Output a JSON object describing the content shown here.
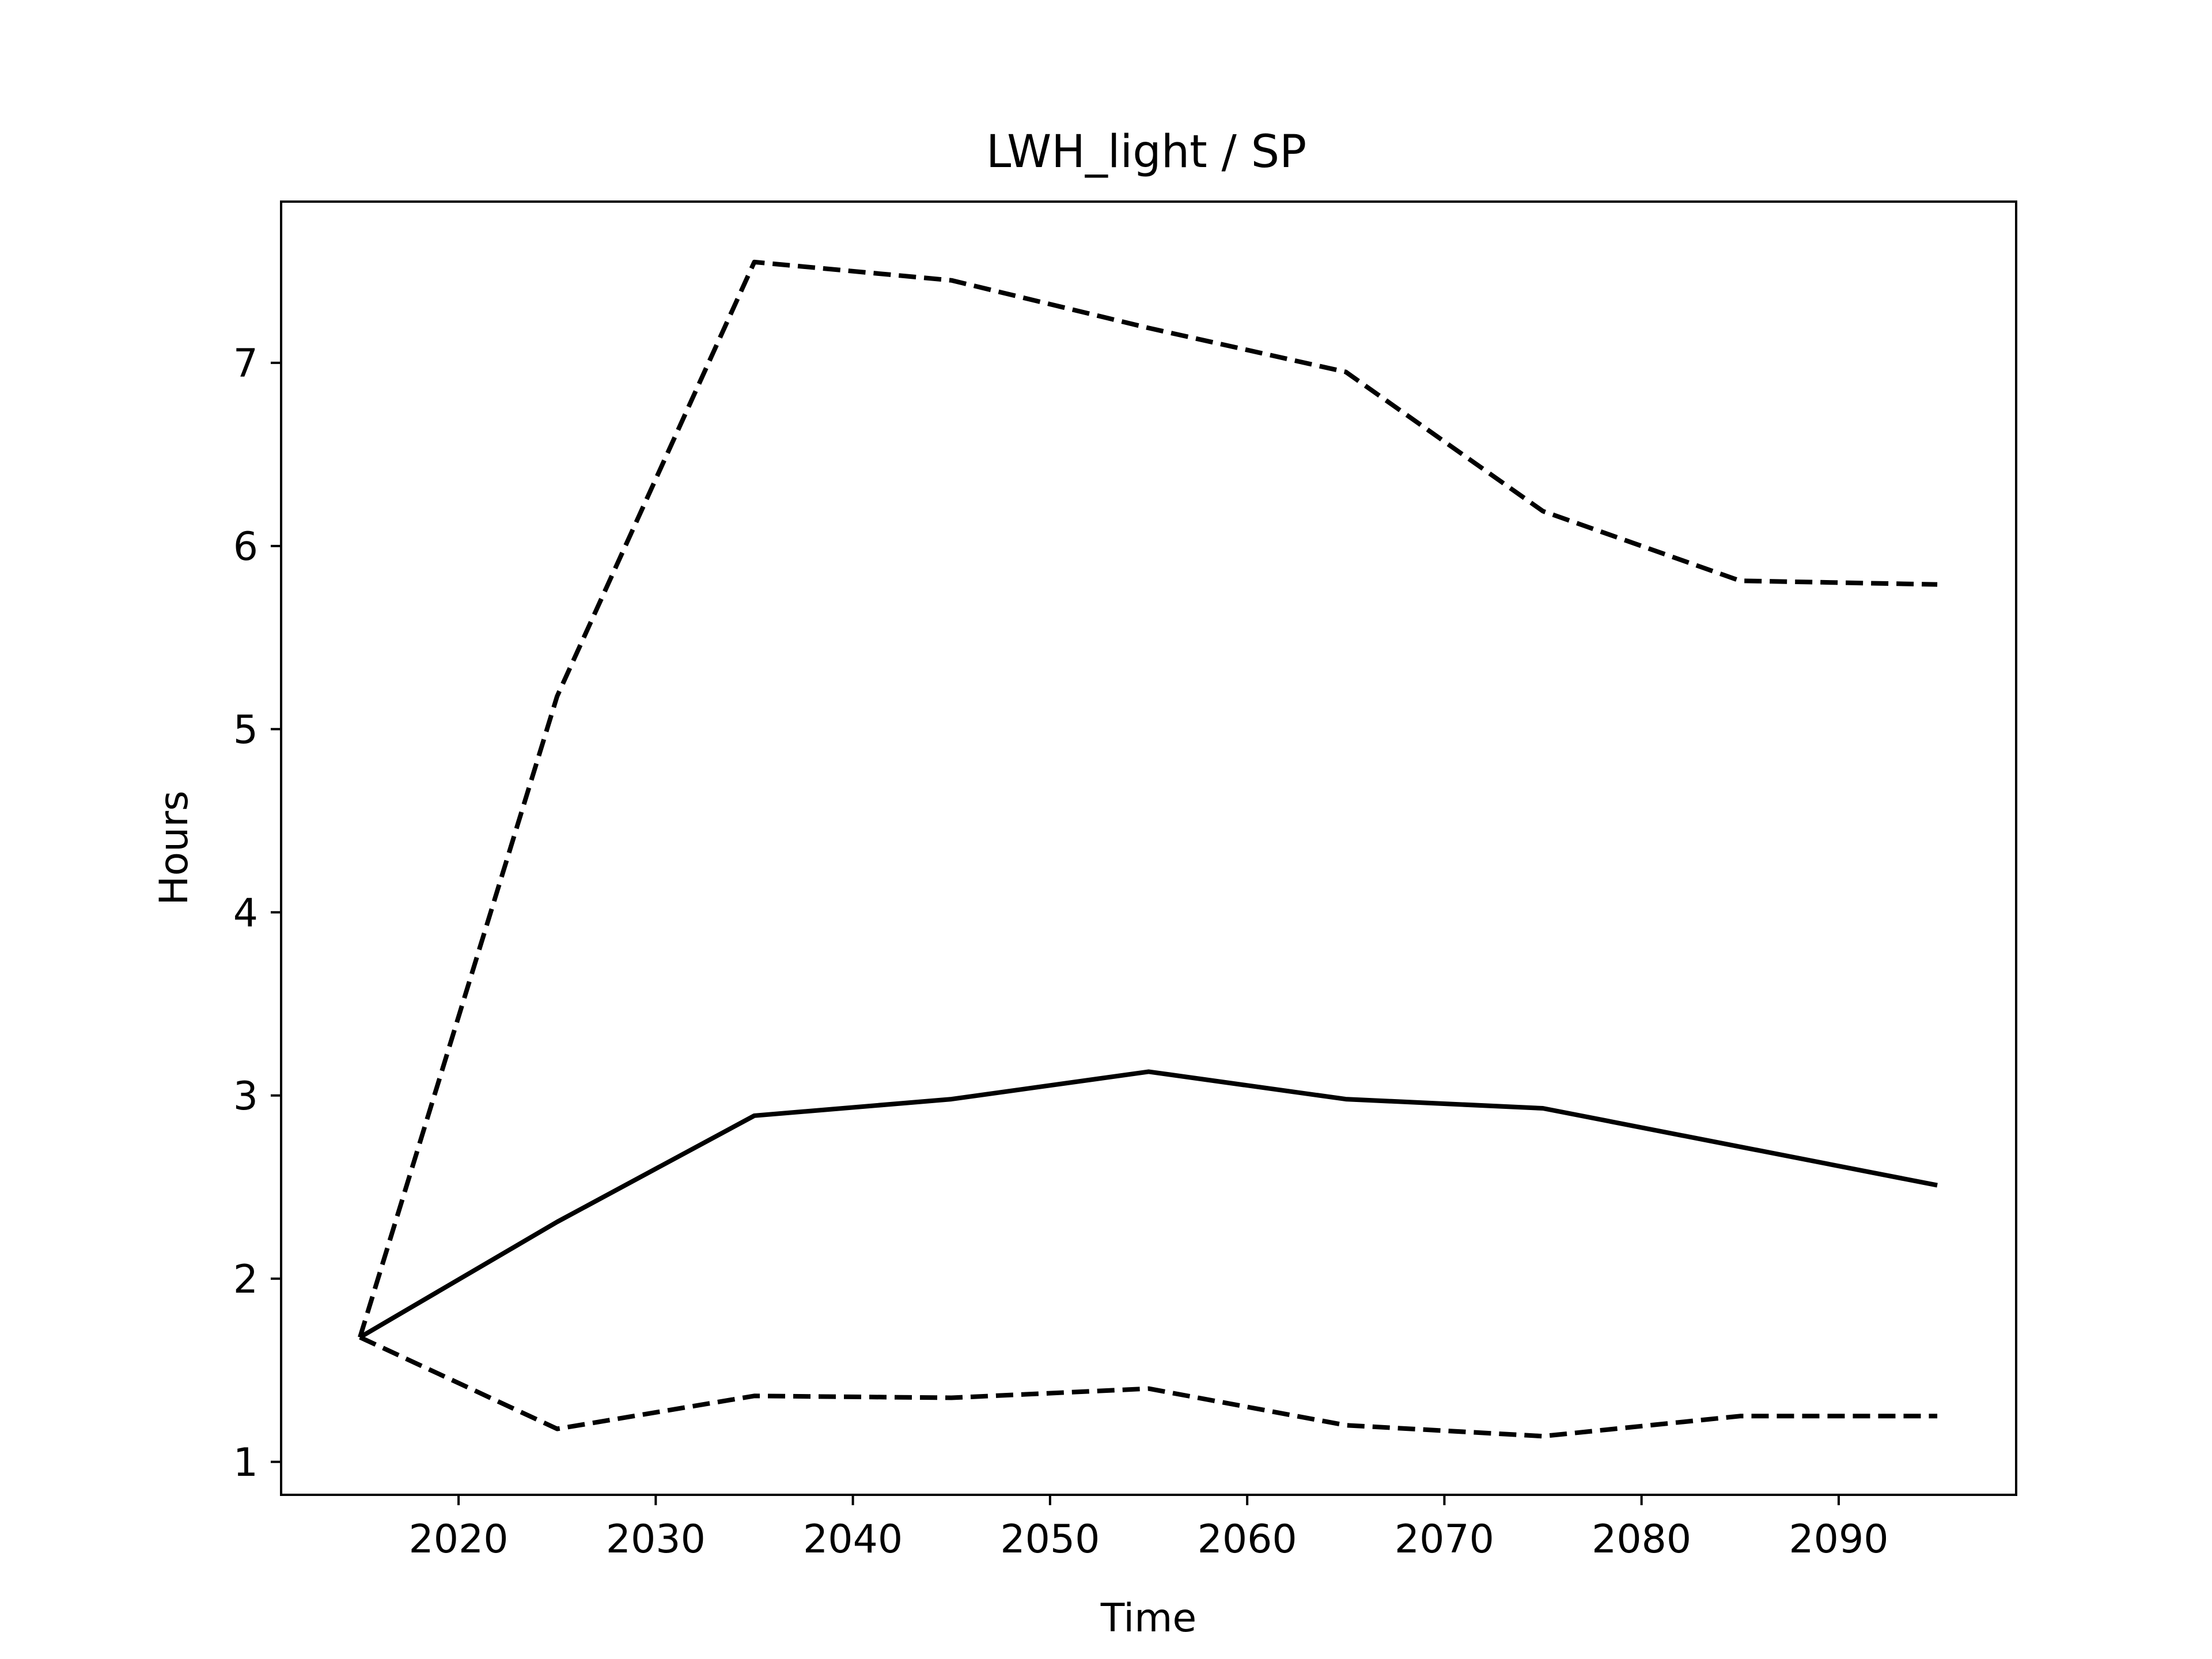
{
  "chart_data": {
    "type": "line",
    "title": "LWH_light / SP",
    "xlabel": "Time",
    "ylabel": "Hours",
    "xlim": [
      2011,
      2099
    ],
    "ylim": [
      0.82,
      7.88
    ],
    "x_ticks": [
      2020,
      2030,
      2040,
      2050,
      2060,
      2070,
      2080,
      2090
    ],
    "y_ticks": [
      1,
      2,
      3,
      4,
      5,
      6,
      7
    ],
    "grid": false,
    "legend": "none",
    "x": [
      2015,
      2025,
      2035,
      2045,
      2055,
      2065,
      2075,
      2085,
      2095
    ],
    "series": [
      {
        "style": "solid",
        "color": "#000000",
        "values": [
          1.68,
          2.31,
          2.89,
          2.98,
          3.13,
          2.98,
          2.93,
          2.72,
          2.51
        ]
      },
      {
        "style": "dashed",
        "color": "#000000",
        "values": [
          1.68,
          5.18,
          7.55,
          7.45,
          7.19,
          6.95,
          6.19,
          5.81,
          5.79
        ]
      },
      {
        "style": "dashed",
        "color": "#000000",
        "values": [
          1.68,
          1.18,
          1.36,
          1.35,
          1.4,
          1.2,
          1.14,
          1.25,
          1.25
        ]
      }
    ]
  }
}
